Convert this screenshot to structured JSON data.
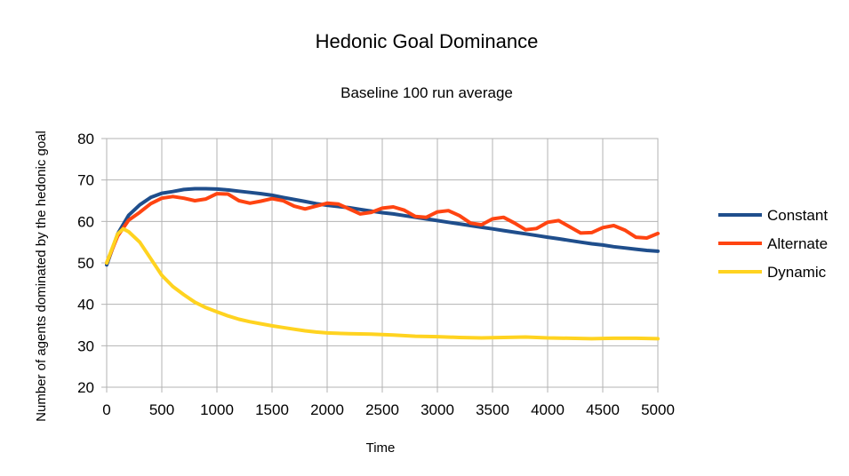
{
  "chart_data": {
    "type": "line",
    "title": "Hedonic Goal Dominance",
    "subtitle": "Baseline 100 run average",
    "xlabel": "Time",
    "ylabel": "Number of agents dominated by the hedonic goal",
    "xlim": [
      0,
      5000
    ],
    "ylim": [
      20,
      80
    ],
    "x_ticks": [
      0,
      500,
      1000,
      1500,
      2000,
      2500,
      3000,
      3500,
      4000,
      4500,
      5000
    ],
    "y_ticks": [
      20,
      30,
      40,
      50,
      60,
      70,
      80
    ],
    "grid": true,
    "legend_position": "right",
    "series": [
      {
        "name": "Constant",
        "color": "#1f4e8c",
        "x": [
          0,
          100,
          200,
          300,
          400,
          500,
          600,
          700,
          800,
          900,
          1000,
          1100,
          1200,
          1300,
          1400,
          1500,
          1600,
          1700,
          1800,
          1900,
          2000,
          2100,
          2200,
          2300,
          2400,
          2500,
          2600,
          2700,
          2800,
          2900,
          3000,
          3100,
          3200,
          3300,
          3400,
          3500,
          3600,
          3700,
          3800,
          3900,
          4000,
          4100,
          4200,
          4300,
          4400,
          4500,
          4600,
          4700,
          4800,
          4900,
          5000
        ],
        "values": [
          49.5,
          57,
          61.5,
          64,
          65.8,
          66.8,
          67.2,
          67.7,
          67.9,
          67.9,
          67.8,
          67.6,
          67.3,
          67.0,
          66.7,
          66.3,
          65.8,
          65.3,
          64.8,
          64.3,
          63.9,
          63.6,
          63.3,
          62.9,
          62.5,
          62.1,
          61.8,
          61.4,
          61.0,
          60.6,
          60.2,
          59.8,
          59.4,
          59.0,
          58.6,
          58.2,
          57.8,
          57.4,
          57.0,
          56.6,
          56.2,
          55.8,
          55.4,
          55.0,
          54.6,
          54.3,
          53.9,
          53.6,
          53.3,
          53.0,
          52.8
        ]
      },
      {
        "name": "Alternate",
        "color": "#ff4411",
        "x": [
          0,
          100,
          200,
          300,
          400,
          500,
          600,
          700,
          800,
          900,
          1000,
          1100,
          1200,
          1300,
          1400,
          1500,
          1600,
          1700,
          1800,
          1900,
          2000,
          2100,
          2200,
          2300,
          2400,
          2500,
          2600,
          2700,
          2800,
          2900,
          3000,
          3100,
          3200,
          3300,
          3400,
          3500,
          3600,
          3700,
          3800,
          3900,
          4000,
          4100,
          4200,
          4300,
          4400,
          4500,
          4600,
          4700,
          4800,
          4900,
          5000
        ],
        "values": [
          50,
          56.5,
          60.3,
          62.2,
          64.3,
          65.6,
          66.0,
          65.6,
          65.0,
          65.4,
          66.7,
          66.6,
          65.0,
          64.4,
          64.9,
          65.5,
          65.0,
          63.7,
          63.0,
          63.7,
          64.4,
          64.2,
          63.0,
          61.8,
          62.2,
          63.2,
          63.5,
          62.7,
          61.2,
          61.0,
          62.3,
          62.6,
          61.4,
          59.6,
          59.2,
          60.6,
          61.0,
          59.6,
          58.0,
          58.3,
          59.8,
          60.2,
          58.7,
          57.2,
          57.3,
          58.5,
          59.0,
          57.9,
          56.2,
          56.0,
          57.1
        ]
      },
      {
        "name": "Dynamic",
        "color": "#ffd320",
        "x": [
          0,
          100,
          150,
          200,
          300,
          400,
          500,
          600,
          700,
          800,
          900,
          1000,
          1100,
          1200,
          1300,
          1400,
          1500,
          1600,
          1700,
          1800,
          1900,
          2000,
          2200,
          2400,
          2600,
          2800,
          3000,
          3200,
          3400,
          3600,
          3800,
          4000,
          4200,
          4400,
          4600,
          4800,
          5000
        ],
        "values": [
          50,
          57,
          58.2,
          57.5,
          55,
          51,
          47,
          44.3,
          42.3,
          40.5,
          39.2,
          38.2,
          37.2,
          36.4,
          35.8,
          35.3,
          34.8,
          34.4,
          34.0,
          33.6,
          33.3,
          33.1,
          32.9,
          32.8,
          32.6,
          32.3,
          32.2,
          32.0,
          31.9,
          32.0,
          32.1,
          31.9,
          31.8,
          31.7,
          31.8,
          31.8,
          31.7
        ]
      }
    ]
  }
}
